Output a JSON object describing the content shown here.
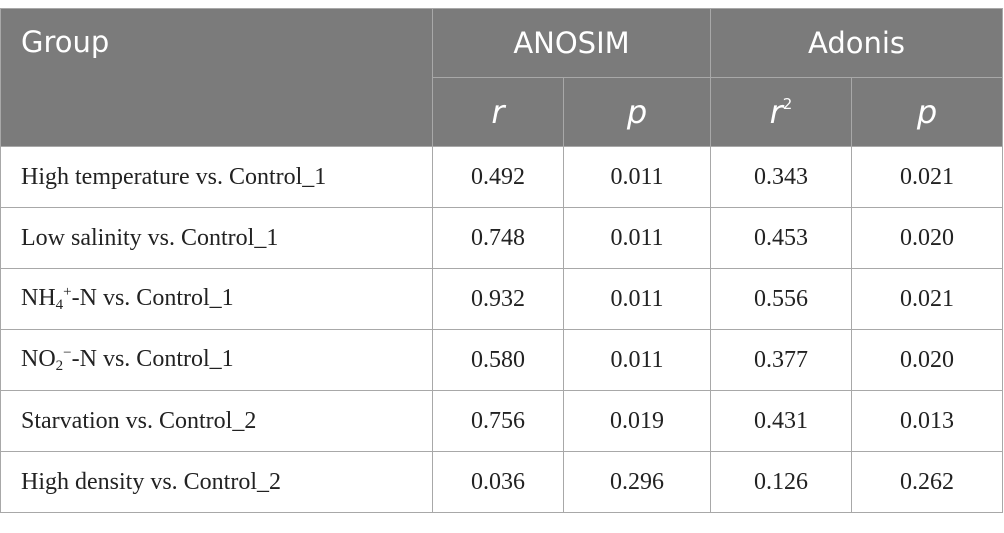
{
  "header": {
    "group": "Group",
    "anosim": "ANOSIM",
    "adonis": "Adonis",
    "anosim_r": "r",
    "anosim_p": "p",
    "adonis_r2_base": "r",
    "adonis_r2_sup": "2",
    "adonis_p": "p"
  },
  "rows": [
    {
      "label": "High temperature vs. Control_1",
      "anosim_r": "0.492",
      "anosim_p": "0.011",
      "adonis_r2": "0.343",
      "adonis_p": "0.021"
    },
    {
      "label": "Low salinity vs. Control_1",
      "anosim_r": "0.748",
      "anosim_p": "0.011",
      "adonis_r2": "0.453",
      "adonis_p": "0.020"
    },
    {
      "label_base": "NH",
      "label_sub": "4",
      "label_sup": "+",
      "label_rest": "-N vs. Control_1",
      "anosim_r": "0.932",
      "anosim_p": "0.011",
      "adonis_r2": "0.556",
      "adonis_p": "0.021"
    },
    {
      "label_base": "NO",
      "label_sub": "2",
      "label_sup": "−",
      "label_rest": "-N vs. Control_1",
      "anosim_r": "0.580",
      "anosim_p": "0.011",
      "adonis_r2": "0.377",
      "adonis_p": "0.020"
    },
    {
      "label": "Starvation vs. Control_2",
      "anosim_r": "0.756",
      "anosim_p": "0.019",
      "adonis_r2": "0.431",
      "adonis_p": "0.013"
    },
    {
      "label": "High density vs. Control_2",
      "anosim_r": "0.036",
      "anosim_p": "0.296",
      "adonis_r2": "0.126",
      "adonis_p": "0.262"
    }
  ],
  "colors": {
    "header_bg": "#7b7b7b",
    "header_text": "#ffffff",
    "border": "#a8a8a8",
    "body_text": "#222222"
  }
}
